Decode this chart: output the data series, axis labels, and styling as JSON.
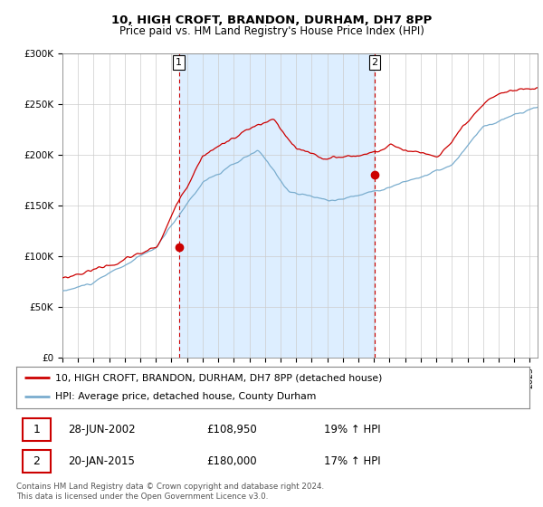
{
  "title": "10, HIGH CROFT, BRANDON, DURHAM, DH7 8PP",
  "subtitle": "Price paid vs. HM Land Registry's House Price Index (HPI)",
  "red_line_label": "10, HIGH CROFT, BRANDON, DURHAM, DH7 8PP (detached house)",
  "blue_line_label": "HPI: Average price, detached house, County Durham",
  "sale1_date": "28-JUN-2002",
  "sale1_price": "£108,950",
  "sale1_hpi": "19% ↑ HPI",
  "sale1_x": 2002.48,
  "sale1_y": 108950,
  "sale2_date": "20-JAN-2015",
  "sale2_price": "£180,000",
  "sale2_hpi": "17% ↑ HPI",
  "sale2_x": 2015.05,
  "sale2_y": 180000,
  "ylim": [
    0,
    300000
  ],
  "xlim_left": 1995.0,
  "xlim_right": 2025.5,
  "copyright": "Contains HM Land Registry data © Crown copyright and database right 2024.\nThis data is licensed under the Open Government Licence v3.0.",
  "red_color": "#cc0000",
  "blue_color": "#7aadce",
  "owned_fill_color": "#ddeeff",
  "background_color": "#ffffff",
  "grid_color": "#cccccc",
  "title_fontsize": 9.5,
  "subtitle_fontsize": 8.5
}
